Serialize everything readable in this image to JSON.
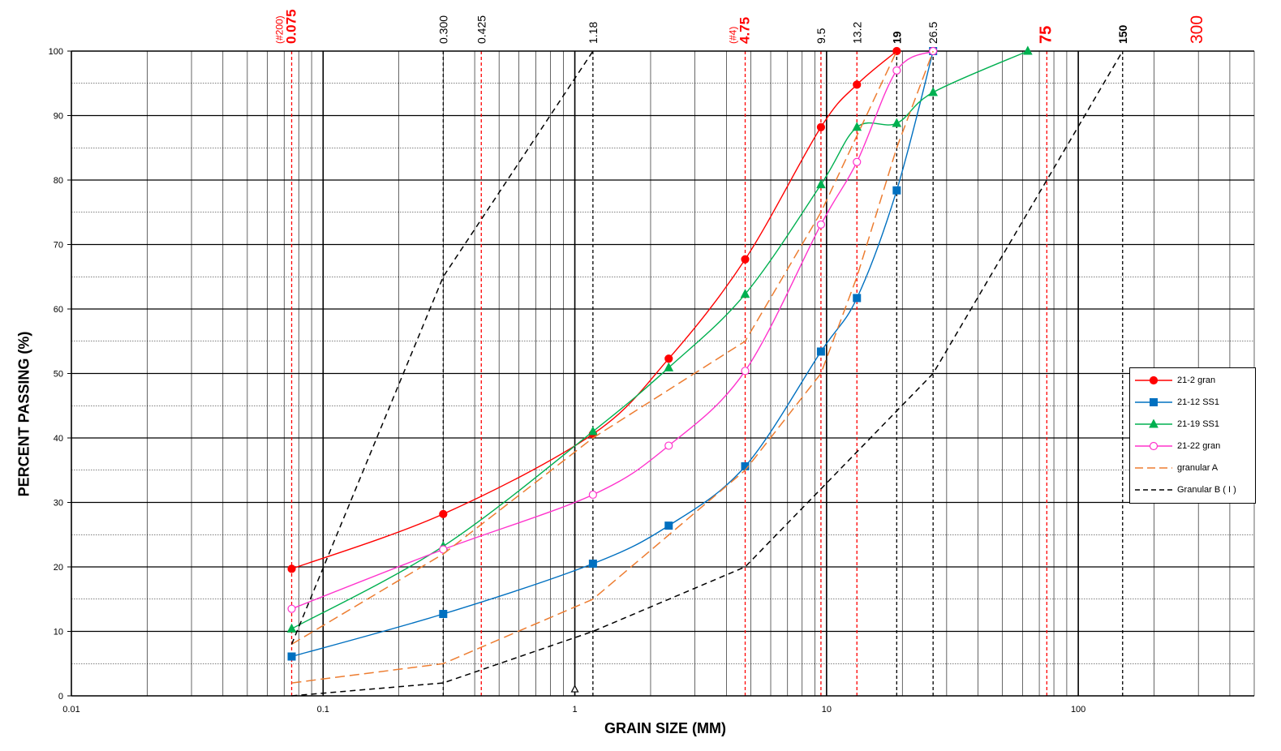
{
  "chart_data": {
    "type": "line",
    "xscale": "log",
    "xlim": [
      0.01,
      500
    ],
    "ylim": [
      0,
      100
    ],
    "grid": true,
    "xlabel": "GRAIN SIZE (MM)",
    "ylabel": "PERCENT PASSING (%)",
    "x_ticks": [
      "0.01",
      "0.1",
      "1",
      "10",
      "100"
    ],
    "y_ticks": [
      "0",
      "10",
      "20",
      "30",
      "40",
      "50",
      "60",
      "70",
      "80",
      "90",
      "100"
    ],
    "legend_position": "right",
    "sieve_labels": [
      {
        "x": 0.075,
        "text": "0.075",
        "prefix": "(#200)",
        "color": "#ff0000",
        "bold": true,
        "line_color": "#ff0000"
      },
      {
        "x": 0.3,
        "text": "0.300",
        "color": "#000000",
        "bold": false,
        "line_color": "#000000"
      },
      {
        "x": 0.425,
        "text": "0.425",
        "color": "#000000",
        "bold": false,
        "line_color": "#ff0000"
      },
      {
        "x": 1.18,
        "text": "1.18",
        "color": "#000000",
        "bold": false,
        "line_color": "#000000"
      },
      {
        "x": 4.75,
        "text": "4.75",
        "prefix": "(#4)",
        "color": "#ff0000",
        "bold": true,
        "line_color": "#ff0000"
      },
      {
        "x": 9.5,
        "text": "9.5",
        "color": "#000000",
        "bold": false,
        "line_color": "#ff0000"
      },
      {
        "x": 13.2,
        "text": "13.2",
        "color": "#000000",
        "bold": false,
        "line_color": "#ff0000"
      },
      {
        "x": 19,
        "text": "19",
        "color": "#000000",
        "bold": true,
        "line_color": "#000000"
      },
      {
        "x": 26.5,
        "text": "26.5",
        "color": "#000000",
        "bold": false,
        "line_color": "#000000"
      },
      {
        "x": 75,
        "text": "75",
        "color": "#ff0000",
        "bold": true,
        "line_color": "#ff0000"
      },
      {
        "x": 150,
        "text": "150",
        "color": "#000000",
        "bold": true,
        "line_color": "#000000"
      },
      {
        "x": 300,
        "text": "300",
        "color": "#ff0000",
        "bold": false,
        "line_color": null
      }
    ],
    "series": [
      {
        "name": "21-2 gran",
        "color": "#ff0000",
        "marker": "circle",
        "filled": true,
        "dash": "solid",
        "x": [
          0.075,
          0.3,
          1.18,
          2.36,
          4.75,
          9.5,
          13.2,
          19
        ],
        "y": [
          19.7,
          28.2,
          40.6,
          52.3,
          67.7,
          88.2,
          94.8,
          100
        ]
      },
      {
        "name": "21-12 SS1",
        "color": "#0070c0",
        "marker": "square",
        "filled": true,
        "dash": "solid",
        "x": [
          0.075,
          0.3,
          1.18,
          2.36,
          4.75,
          9.5,
          13.2,
          19,
          26.5
        ],
        "y": [
          6.1,
          12.7,
          20.5,
          26.4,
          35.6,
          53.4,
          61.7,
          78.4,
          100
        ]
      },
      {
        "name": "21-19 SS1",
        "color": "#00b050",
        "marker": "triangle",
        "filled": true,
        "dash": "solid",
        "x": [
          0.075,
          0.3,
          1.18,
          2.36,
          4.75,
          9.5,
          13.2,
          19,
          26.5,
          63
        ],
        "y": [
          10.4,
          23.2,
          41,
          50.9,
          62.3,
          79.3,
          88.2,
          88.8,
          93.6,
          100
        ]
      },
      {
        "name": "21-22 gran",
        "color": "#ff33cc",
        "marker": "circle",
        "filled": false,
        "dash": "solid",
        "x": [
          0.075,
          0.3,
          1.18,
          2.36,
          4.75,
          9.5,
          13.2,
          19,
          26.5
        ],
        "y": [
          13.5,
          22.7,
          31.2,
          38.8,
          50.4,
          73.1,
          82.8,
          97,
          100
        ]
      },
      {
        "name": "granular  A",
        "color": "#ed7d31",
        "marker": "none",
        "dash": "long",
        "polyline": true,
        "envelope": [
          {
            "x": [
              0.075,
              0.3,
              1.18,
              4.75,
              9.5,
              19
            ],
            "y": [
              8,
              22,
              40,
              55,
              75,
              100
            ]
          },
          {
            "x": [
              0.075,
              0.3,
              1.18,
              4.75,
              9.5,
              13.2,
              19,
              26.5
            ],
            "y": [
              2,
              5,
              15,
              35,
              50,
              65,
              85,
              100
            ]
          }
        ]
      },
      {
        "name": "Granular B ( I )",
        "color": "#000000",
        "marker": "none",
        "dash": "short",
        "polyline": true,
        "envelope": [
          {
            "x": [
              0.075,
              0.3,
              1.18
            ],
            "y": [
              8,
              65,
              100
            ]
          },
          {
            "x": [
              0.075,
              0.3,
              1.18,
              4.75,
              26.5,
              150
            ],
            "y": [
              0,
              2,
              10,
              20,
              50,
              100
            ]
          }
        ]
      }
    ],
    "stray_marker": {
      "x": 1.0,
      "y": 1,
      "marker": "triangle-open",
      "color": "#000000"
    }
  }
}
